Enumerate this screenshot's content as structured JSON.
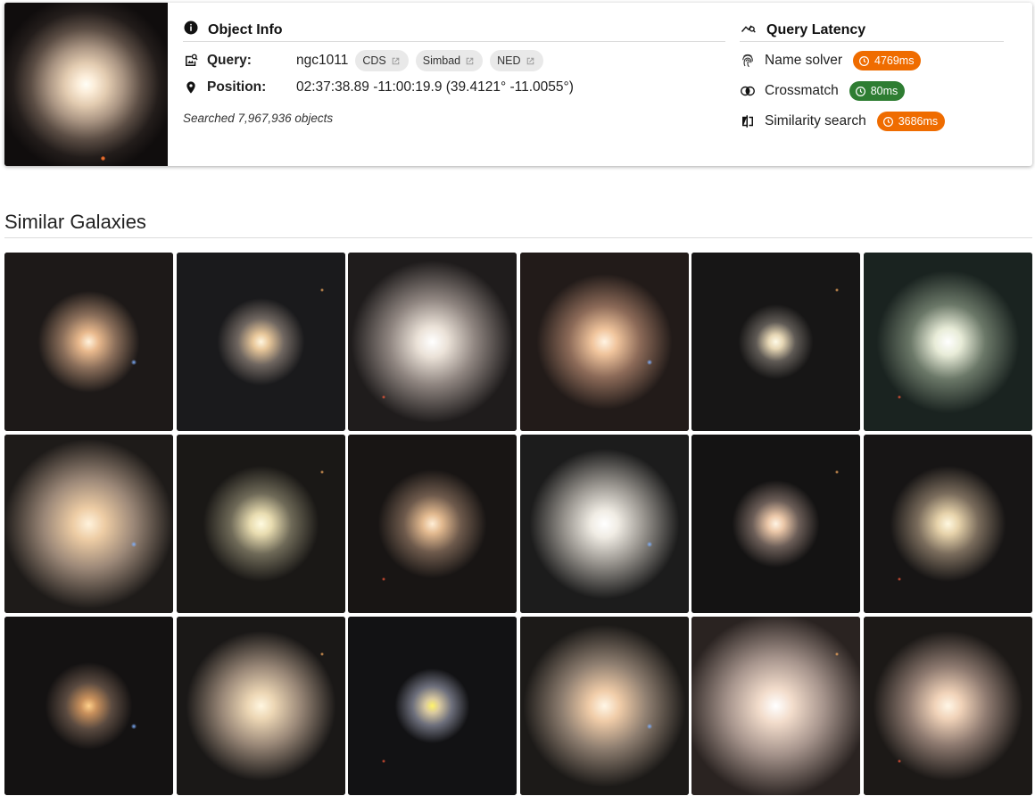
{
  "object_info": {
    "title": "Object Info",
    "query_label": "Query:",
    "query_value": "ngc1011",
    "links": [
      "CDS",
      "Simbad",
      "NED"
    ],
    "position_label": "Position:",
    "position_value": "02:37:38.89 -11:00:19.9 (39.4121° -11.0055°)",
    "searched": "Searched 7,967,936 objects"
  },
  "query_latency": {
    "title": "Query Latency",
    "items": [
      {
        "label": "Name solver",
        "value": "4769ms",
        "color": "#ef6c00",
        "icon": "fingerprint-icon"
      },
      {
        "label": "Crossmatch",
        "value": "80ms",
        "color": "#2e7d32",
        "icon": "crossmatch-icon"
      },
      {
        "label": "Similarity search",
        "value": "3686ms",
        "color": "#ef6c00",
        "icon": "compare-icon"
      }
    ]
  },
  "similar": {
    "title": "Similar Galaxies",
    "count": 18
  }
}
